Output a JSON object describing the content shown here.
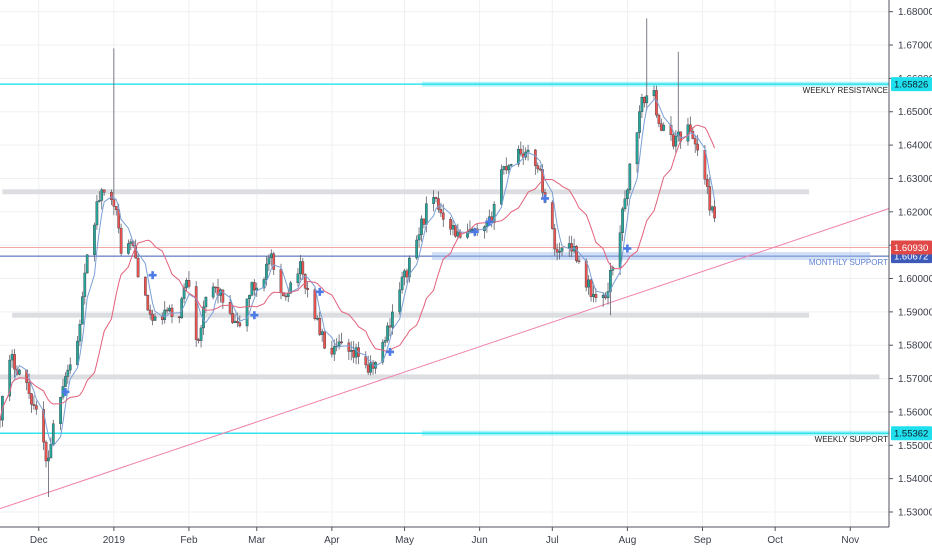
{
  "chart_data": {
    "type": "candlestick",
    "title": "",
    "xlabel": "",
    "ylabel": "",
    "ylim": [
      1.5255,
      1.6835
    ],
    "grid": true,
    "y_ticks": [
      1.53,
      1.54,
      1.55,
      1.56,
      1.57,
      1.58,
      1.59,
      1.6,
      1.61,
      1.62,
      1.63,
      1.64,
      1.65,
      1.66,
      1.67,
      1.68
    ],
    "y_tick_labels": [
      "1.53000",
      "1.54000",
      "1.55000",
      "1.56000",
      "1.57000",
      "1.58000",
      "1.59000",
      "1.60000",
      "1.61000",
      "1.62000",
      "1.63000",
      "1.64000",
      "1.65000",
      "1.66000",
      "1.67000",
      "1.68000"
    ],
    "x_labels": [
      {
        "label": "Dec",
        "date": "2018-12-01"
      },
      {
        "label": "2019",
        "date": "2019-01-01"
      },
      {
        "label": "Feb",
        "date": "2019-02-01"
      },
      {
        "label": "Mar",
        "date": "2019-03-01"
      },
      {
        "label": "Apr",
        "date": "2019-04-01"
      },
      {
        "label": "May",
        "date": "2019-05-01"
      },
      {
        "label": "Jun",
        "date": "2019-06-01"
      },
      {
        "label": "Jul",
        "date": "2019-07-01"
      },
      {
        "label": "Aug",
        "date": "2019-08-01"
      },
      {
        "label": "Sep",
        "date": "2019-09-01"
      },
      {
        "label": "Oct",
        "date": "2019-10-01"
      },
      {
        "label": "Nov",
        "date": "2019-11-01"
      }
    ],
    "xlim": [
      "2018-11-15",
      "2019-11-17"
    ],
    "anchors": [
      [
        "2018-11-15",
        1.558
      ],
      [
        "2018-11-20",
        1.576
      ],
      [
        "2018-11-25",
        1.571
      ],
      [
        "2018-11-30",
        1.561
      ],
      [
        "2018-12-05",
        1.545
      ],
      [
        "2018-12-08",
        1.558
      ],
      [
        "2018-12-12",
        1.571
      ],
      [
        "2018-12-17",
        1.578
      ],
      [
        "2018-12-21",
        1.603
      ],
      [
        "2018-12-26",
        1.624
      ],
      [
        "2019-01-01",
        1.626
      ],
      [
        "2019-01-05",
        1.607
      ],
      [
        "2019-01-09",
        1.611
      ],
      [
        "2019-01-14",
        1.594
      ],
      [
        "2019-01-18",
        1.586
      ],
      [
        "2019-01-23",
        1.59
      ],
      [
        "2019-01-28",
        1.588
      ],
      [
        "2019-02-01",
        1.602
      ],
      [
        "2019-02-05",
        1.581
      ],
      [
        "2019-02-10",
        1.598
      ],
      [
        "2019-02-14",
        1.596
      ],
      [
        "2019-02-18",
        1.588
      ],
      [
        "2019-02-22",
        1.585
      ],
      [
        "2019-02-27",
        1.597
      ],
      [
        "2019-03-03",
        1.598
      ],
      [
        "2019-03-07",
        1.607
      ],
      [
        "2019-03-11",
        1.593
      ],
      [
        "2019-03-15",
        1.598
      ],
      [
        "2019-03-19",
        1.604
      ],
      [
        "2019-03-24",
        1.593
      ],
      [
        "2019-03-28",
        1.583
      ],
      [
        "2019-04-01",
        1.576
      ],
      [
        "2019-04-05",
        1.58
      ],
      [
        "2019-04-09",
        1.576
      ],
      [
        "2019-04-13",
        1.578
      ],
      [
        "2019-04-17",
        1.572
      ],
      [
        "2019-04-21",
        1.576
      ],
      [
        "2019-04-25",
        1.586
      ],
      [
        "2019-04-29",
        1.597
      ],
      [
        "2019-05-03",
        1.603
      ],
      [
        "2019-05-08",
        1.615
      ],
      [
        "2019-05-12",
        1.624
      ],
      [
        "2019-05-16",
        1.621
      ],
      [
        "2019-05-20",
        1.617
      ],
      [
        "2019-05-25",
        1.611
      ],
      [
        "2019-05-29",
        1.614
      ],
      [
        "2019-06-02",
        1.612
      ],
      [
        "2019-06-06",
        1.617
      ],
      [
        "2019-06-10",
        1.632
      ],
      [
        "2019-06-14",
        1.635
      ],
      [
        "2019-06-18",
        1.639
      ],
      [
        "2019-06-22",
        1.636
      ],
      [
        "2019-06-26",
        1.634
      ],
      [
        "2019-06-30",
        1.617
      ],
      [
        "2019-07-04",
        1.607
      ],
      [
        "2019-07-08",
        1.612
      ],
      [
        "2019-07-11",
        1.608
      ],
      [
        "2019-07-15",
        1.6
      ],
      [
        "2019-07-19",
        1.594
      ],
      [
        "2019-07-23",
        1.593
      ],
      [
        "2019-07-27",
        1.606
      ],
      [
        "2019-07-31",
        1.621
      ],
      [
        "2019-08-04",
        1.64
      ],
      [
        "2019-08-08",
        1.654
      ],
      [
        "2019-08-12",
        1.656
      ],
      [
        "2019-08-15",
        1.646
      ],
      [
        "2019-08-19",
        1.641
      ],
      [
        "2019-08-23",
        1.643
      ],
      [
        "2019-08-27",
        1.645
      ],
      [
        "2019-08-31",
        1.638
      ],
      [
        "2019-09-04",
        1.624
      ],
      [
        "2019-09-08",
        1.612
      ]
    ],
    "spikes": [
      {
        "date": "2019-01-01",
        "high": 1.669
      },
      {
        "date": "2018-12-05",
        "low": 1.5345
      },
      {
        "date": "2019-08-10",
        "high": 1.678
      },
      {
        "date": "2019-08-22",
        "high": 1.668
      },
      {
        "date": "2019-07-25",
        "low": 1.589
      }
    ],
    "moving_averages": [
      {
        "color": "#7a9fd6",
        "period": 5
      },
      {
        "color": "#e2607a",
        "period": 20
      }
    ],
    "support_resistance": [
      {
        "label": "WEEKLY RESISTANCE",
        "price": 1.65826,
        "price_label": "1.65826",
        "style": "cyan",
        "from": "2018-11-15"
      },
      {
        "label": "WEEKLY SUPPORT",
        "price": 1.55362,
        "price_label": "1.55362",
        "style": "cyan",
        "from": "2018-11-15"
      },
      {
        "label": "MONTHLY SUPPORT",
        "price": 1.60672,
        "price_label": "1.60672",
        "style": "blue",
        "from": "2018-11-15"
      }
    ],
    "horizontal_zones": [
      {
        "price": 1.626,
        "from": "2018-11-16",
        "to": "2019-10-15"
      },
      {
        "price": 1.589,
        "from": "2018-11-20",
        "to": "2019-10-15"
      },
      {
        "price": 1.5705,
        "from": "2018-11-15",
        "to": "2019-11-13"
      }
    ],
    "last_price": {
      "price": 1.6093,
      "price_label": "1.60930",
      "color": "#e04848"
    },
    "trendline": {
      "color": "#ef7fab",
      "points": [
        [
          "2018-11-15",
          1.531
        ],
        [
          "2019-11-17",
          1.621
        ]
      ]
    },
    "signal_markers": [
      {
        "date": "2018-12-12",
        "price": 1.566
      },
      {
        "date": "2019-01-17",
        "price": 1.601
      },
      {
        "date": "2019-02-28",
        "price": 1.589
      },
      {
        "date": "2019-03-27",
        "price": 1.596
      },
      {
        "date": "2019-04-25",
        "price": 1.578
      },
      {
        "date": "2019-05-30",
        "price": 1.614
      },
      {
        "date": "2019-06-05",
        "price": 1.617
      },
      {
        "date": "2019-06-28",
        "price": 1.624
      },
      {
        "date": "2019-08-01",
        "price": 1.609
      }
    ],
    "colors": {
      "up": "#26a69a",
      "down": "#ef5350",
      "cyan": "#20e0ee",
      "blue": "#3d5ab8"
    }
  }
}
